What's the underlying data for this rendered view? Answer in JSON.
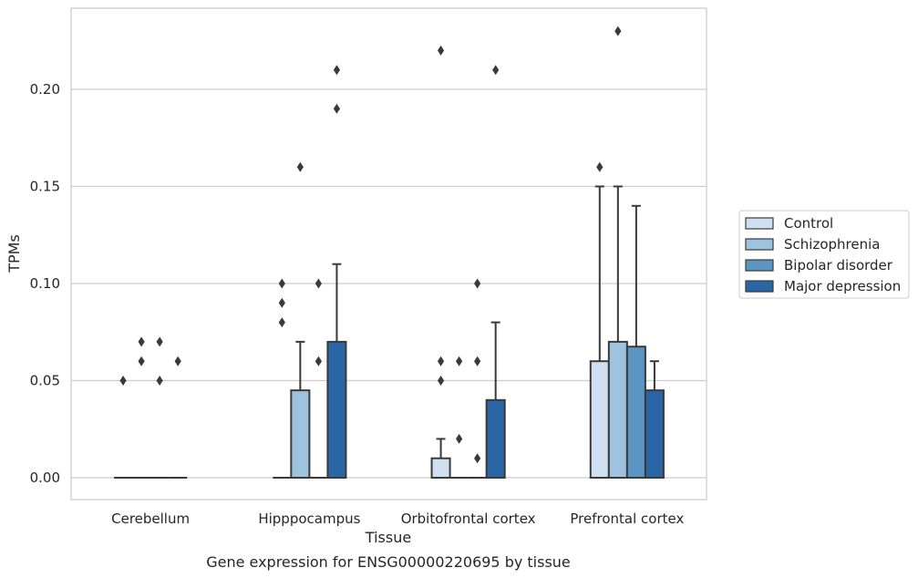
{
  "chart_data": {
    "type": "box",
    "caption": "Gene expression for ENSG00000220695 by tissue",
    "xlabel": "Tissue",
    "ylabel": "TPMs",
    "ylim": [
      -0.011,
      0.241
    ],
    "yticks": [
      "0.00",
      "0.05",
      "0.10",
      "0.15",
      "0.20"
    ],
    "ytick_values": [
      0.0,
      0.05,
      0.1,
      0.15,
      0.2
    ],
    "grid": true,
    "legend_position": "right",
    "categories": [
      "Cerebellum",
      "Hipppocampus",
      "Orbitofrontal cortex",
      "Prefrontal cortex"
    ],
    "series": [
      {
        "name": "Control",
        "color": "#cfe1f0",
        "boxes": [
          {
            "q1": 0,
            "q3": 0,
            "whisker_high": 0,
            "outliers": [
              0.05
            ]
          },
          {
            "q1": 0,
            "q3": 0,
            "whisker_high": 0,
            "outliers": [
              0.08,
              0.09,
              0.1
            ]
          },
          {
            "q1": 0,
            "q3": 0.01,
            "whisker_high": 0.02,
            "outliers": [
              0.05,
              0.06,
              0.22
            ]
          },
          {
            "q1": 0,
            "q3": 0.06,
            "whisker_high": 0.15,
            "outliers": [
              0.16
            ]
          }
        ]
      },
      {
        "name": "Schizophrenia",
        "color": "#9dc3de",
        "boxes": [
          {
            "q1": 0,
            "q3": 0,
            "whisker_high": 0,
            "outliers": [
              0.06,
              0.07
            ]
          },
          {
            "q1": 0,
            "q3": 0.045,
            "whisker_high": 0.07,
            "outliers": [
              0.16
            ]
          },
          {
            "q1": 0,
            "q3": 0,
            "whisker_high": 0,
            "outliers": [
              0.02,
              0.06
            ]
          },
          {
            "q1": 0,
            "q3": 0.07,
            "whisker_high": 0.15,
            "outliers": [
              0.23
            ]
          }
        ]
      },
      {
        "name": "Bipolar disorder",
        "color": "#5b96c2",
        "boxes": [
          {
            "q1": 0,
            "q3": 0,
            "whisker_high": 0,
            "outliers": [
              0.05,
              0.07
            ]
          },
          {
            "q1": 0,
            "q3": 0,
            "whisker_high": 0,
            "outliers": [
              0.06,
              0.1
            ]
          },
          {
            "q1": 0,
            "q3": 0,
            "whisker_high": 0,
            "outliers": [
              0.01,
              0.06,
              0.1
            ]
          },
          {
            "q1": 0,
            "q3": 0.0675,
            "whisker_high": 0.14,
            "outliers": []
          }
        ]
      },
      {
        "name": "Major depression",
        "color": "#2a66a6",
        "boxes": [
          {
            "q1": 0,
            "q3": 0,
            "whisker_high": 0,
            "outliers": [
              0.06
            ]
          },
          {
            "q1": 0,
            "q3": 0.07,
            "whisker_high": 0.11,
            "outliers": [
              0.19,
              0.21
            ]
          },
          {
            "q1": 0,
            "q3": 0.04,
            "whisker_high": 0.08,
            "outliers": [
              0.21
            ]
          },
          {
            "q1": 0,
            "q3": 0.045,
            "whisker_high": 0.06,
            "outliers": []
          }
        ]
      }
    ]
  }
}
